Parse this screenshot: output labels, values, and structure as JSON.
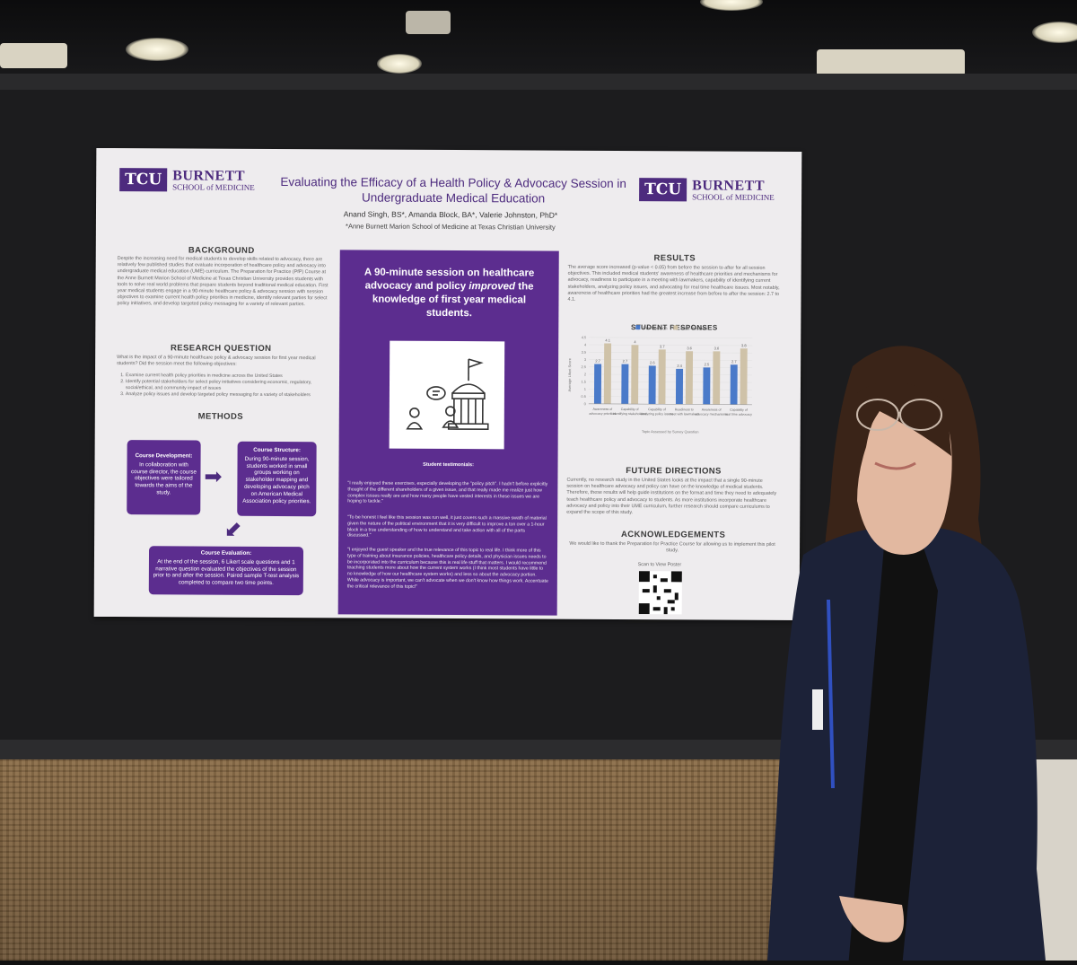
{
  "poster": {
    "logo_left": {
      "box": "TCU",
      "name": "BURNETT",
      "school": "SCHOOL of MEDICINE"
    },
    "logo_right": {
      "box": "TCU",
      "name": "BURNETT",
      "school": "SCHOOL of MEDICINE"
    },
    "title": "Evaluating the Efficacy of a Health Policy & Advocacy Session in Undergraduate Medical Education",
    "authors": "Anand Singh, BS*, Amanda Block, BA*, Valerie Johnston, PhD*",
    "affiliation": "*Anne Burnett Marion School of Medicine at Texas Christian University",
    "background": {
      "heading": "BACKGROUND",
      "text": "Despite the increasing need for medical students to develop skills related to advocacy, there are relatively few published studies that evaluate incorporation of healthcare policy and advocacy into undergraduate medical education (UME) curriculum. The Preparation for Practice (PfP) Course at the Anne Burnett Marion School of Medicine at Texas Christian University provides students with tools to solve real world problems that prepare students beyond traditional medical education. First year medical students engage in a 90-minute healthcare policy & advocacy session with session objectives to examine current health policy priorities in medicine, identify relevant parties for select policy initiatives, and develop targeted policy messaging for a variety of relevant parties."
    },
    "research_question": {
      "heading": "RESEARCH QUESTION",
      "text": "What is the impact of a 90-minute healthcare policy & advocacy session for first year medical students? Did the session meet the following objectives:",
      "objectives": [
        "Examine current health policy priorities in medicine across the United States",
        "Identify potential stakeholders for select policy initiatives considering economic, regulatory, social/ethical, and community impact of issues",
        "Analyze policy issues and develop targeted policy messaging for a variety of stakeholders"
      ]
    },
    "methods": {
      "heading": "METHODS",
      "dev_title": "Course Development:",
      "dev_text": "In collaboration with course director, the course objectives were tailored towards the aims of the study.",
      "struct_title": "Course Structure:",
      "struct_text": "During 90-minute session, students worked in small groups working on stakeholder mapping and developing advocacy pitch on American Medical Association policy priorities.",
      "eval_title": "Course Evaluation:",
      "eval_text": "At the end of the session, 6 Likert scale questions and 1 narrative question evaluated the objectives of the session prior to and after the session. Paired sample T-test analysis completed to compare two time points."
    },
    "center": {
      "headline_pre": "A 90-minute session on healthcare advocacy and policy ",
      "headline_em": "improved",
      "headline_post": " the knowledge of first year medical students.",
      "testimonials_label": "Student testimonials:",
      "quotes": [
        "\"I really enjoyed these exercises, especially developing the \"policy pitch\". I hadn't before explicitly thought of the different shareholders of a given issue, and that really made me realize just how complex issues really are and how many people have vested interests in these issues we are hoping to tackle.\"",
        "\"To be honest I feel like this session was run well, it just covers such a massive swath of material given the nature of the political environment that it is very difficult to improve a ton over a 1-hour block in a true understanding of how to understand and take action with all of the parts discussed.\"",
        "\"I enjoyed the guest speaker and the true relevance of this topic to real life. I think more of this type of training about insurance policies, healthcare policy details, and physician issues needs to be incorporated into the curriculum because this is real life stuff that matters. I would recommend teaching students more about how the current system works (I think most students have little to no knowledge of how our healthcare system works) and less so about the advocacy portion. While advocacy is important, we can't advocate when we don't know how things work. Accentuate the critical relevance of this topic!\""
      ]
    },
    "results": {
      "heading": "RESULTS",
      "text": "The average score increased (p-value < 0.05) from before the session to after for all session objectives. This included medical students' awareness of healthcare priorities and mechanisms for advocacy, readiness to participate in a meeting with lawmakers, capability of identifying current stakeholders, analyzing policy issues, and advocating for real time healthcare issues. Most notably, awareness of healthcare priorities had the greatest increase from before to after the session: 2.7 to 4.1."
    },
    "student_responses": {
      "heading": "STUDENT RESPONSES",
      "legend_pre": "Pre-Session",
      "legend_post": "Post-Session",
      "y_label": "Average Likert Score",
      "x_label": "Topic Assessed by Survey Question",
      "pre_color": "#4a7ac9",
      "post_color": "#cfc2a8",
      "categories": [
        "Awareness of advocacy priorities",
        "Capability of identifying stakeholders",
        "Capability of analyzing policy issues",
        "Readiness to meet with lawmakers",
        "Awareness of advocacy mechanisms",
        "Capability of real time advocacy"
      ],
      "pre_values": [
        2.7,
        2.7,
        2.6,
        2.4,
        2.5,
        2.7
      ],
      "post_values": [
        4.1,
        4.0,
        3.7,
        3.6,
        3.6,
        3.8
      ]
    },
    "future": {
      "heading": "FUTURE DIRECTIONS",
      "text": "Currently, no research study in the United States looks at the impact that a single 90-minute session on healthcare advocacy and policy can have on the knowledge of medical students. Therefore, these results will help guide institutions on the format and time they need to adequately teach healthcare policy and advocacy to students. As more institutions incorporate healthcare advocacy and policy into their UME curriculum, further research should compare curriculums to expand the scope of this study."
    },
    "acknowledgements": {
      "heading": "ACKNOWLEDGEMENTS",
      "text": "We would like to thank the Preparation for Practice Course for allowing us to implement this pilot study."
    },
    "scan_label": "Scan to View Poster"
  }
}
